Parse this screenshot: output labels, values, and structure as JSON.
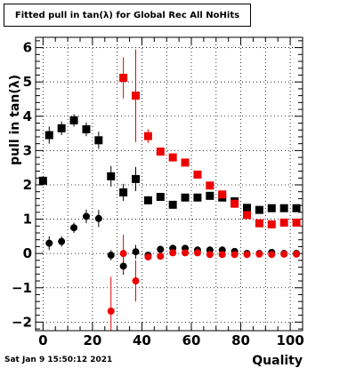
{
  "footer": {
    "timestamp": "Sat Jan  9 15:50:12 2021"
  },
  "chart_data": {
    "type": "scatter",
    "title": "Fitted pull in tan(λ) for Global Rec All NoHits",
    "xlabel": "Quality",
    "ylabel": "pull in tan(λ)",
    "xlim": [
      -3,
      105
    ],
    "ylim": [
      -2.25,
      6.3
    ],
    "grid": true,
    "x_ticks": [
      0,
      20,
      40,
      60,
      80,
      100
    ],
    "y_ticks": [
      -2,
      -1,
      0,
      1,
      2,
      3,
      4,
      5,
      6
    ],
    "colors": {
      "black": "#000000",
      "red": "#ee0000"
    },
    "series": [
      {
        "marker": "square",
        "color": "#000000",
        "x": [
          0,
          2.5,
          7.5,
          12.5,
          17.5,
          22.5,
          27.5,
          32.5,
          37.5,
          42.5,
          47.5,
          52.5,
          57.5,
          62.5,
          67.5,
          72.5,
          77.5,
          82.5,
          87.5,
          92.5,
          97.5,
          102.5
        ],
        "y": [
          2.12,
          3.45,
          3.65,
          3.88,
          3.62,
          3.3,
          2.25,
          1.78,
          2.17,
          1.55,
          1.65,
          1.42,
          1.63,
          1.63,
          1.68,
          1.63,
          1.52,
          1.33,
          1.27,
          1.32,
          1.32,
          1.32
        ],
        "yerr": [
          0.12,
          0.25,
          0.2,
          0.18,
          0.2,
          0.25,
          0.3,
          0.25,
          0.35,
          0.12,
          0.1,
          0.1,
          0.08,
          0.08,
          0.08,
          0.08,
          0.08,
          0.08,
          0.06,
          0.06,
          0.06,
          0.06
        ]
      },
      {
        "marker": "square",
        "color": "#ee0000",
        "x": [
          32.5,
          37.5,
          42.5,
          47.5,
          52.5,
          57.5,
          62.5,
          67.5,
          72.5,
          77.5,
          82.5,
          87.5,
          92.5,
          97.5,
          102.5
        ],
        "y": [
          5.12,
          4.6,
          3.42,
          2.97,
          2.8,
          2.65,
          2.3,
          1.98,
          1.72,
          1.45,
          1.12,
          0.88,
          0.85,
          0.9,
          0.9
        ],
        "yerr": [
          0.6,
          1.35,
          0.2,
          0.12,
          0.12,
          0.1,
          0.1,
          0.1,
          0.08,
          0.08,
          0.08,
          0.06,
          0.06,
          0.06,
          0.06
        ]
      },
      {
        "marker": "circle",
        "color": "#000000",
        "x": [
          2.5,
          7.5,
          12.5,
          17.5,
          22.5,
          27.5,
          32.5,
          37.5,
          42.5,
          47.5,
          52.5,
          57.5,
          62.5,
          67.5,
          72.5,
          77.5,
          82.5,
          87.5,
          92.5,
          97.5,
          102.5
        ],
        "y": [
          0.3,
          0.35,
          0.75,
          1.08,
          1.02,
          -0.05,
          -0.37,
          0.05,
          -0.05,
          0.12,
          0.15,
          0.15,
          0.1,
          0.1,
          0.1,
          0.06,
          0.0,
          0.0,
          0.03,
          0.0,
          0.0
        ],
        "yerr": [
          0.2,
          0.15,
          0.15,
          0.2,
          0.25,
          0.15,
          0.25,
          0.2,
          0.08,
          0.06,
          0.06,
          0.06,
          0.05,
          0.05,
          0.05,
          0.05,
          0.04,
          0.04,
          0.04,
          0.04,
          0.04
        ]
      },
      {
        "marker": "circle",
        "color": "#ee0000",
        "x": [
          27.5,
          32.5,
          37.5,
          42.5,
          47.5,
          52.5,
          57.5,
          62.5,
          67.5,
          72.5,
          77.5,
          82.5,
          87.5,
          92.5,
          97.5,
          102.5
        ],
        "y": [
          -1.68,
          0.0,
          -0.8,
          -0.1,
          -0.08,
          0.02,
          0.02,
          0.02,
          -0.03,
          -0.03,
          -0.03,
          -0.03,
          -0.02,
          -0.03,
          -0.02,
          -0.02
        ],
        "yerr": [
          1.0,
          0.55,
          0.6,
          0.1,
          0.08,
          0.06,
          0.06,
          0.05,
          0.05,
          0.05,
          0.05,
          0.04,
          0.04,
          0.04,
          0.04,
          0.04
        ]
      }
    ]
  }
}
